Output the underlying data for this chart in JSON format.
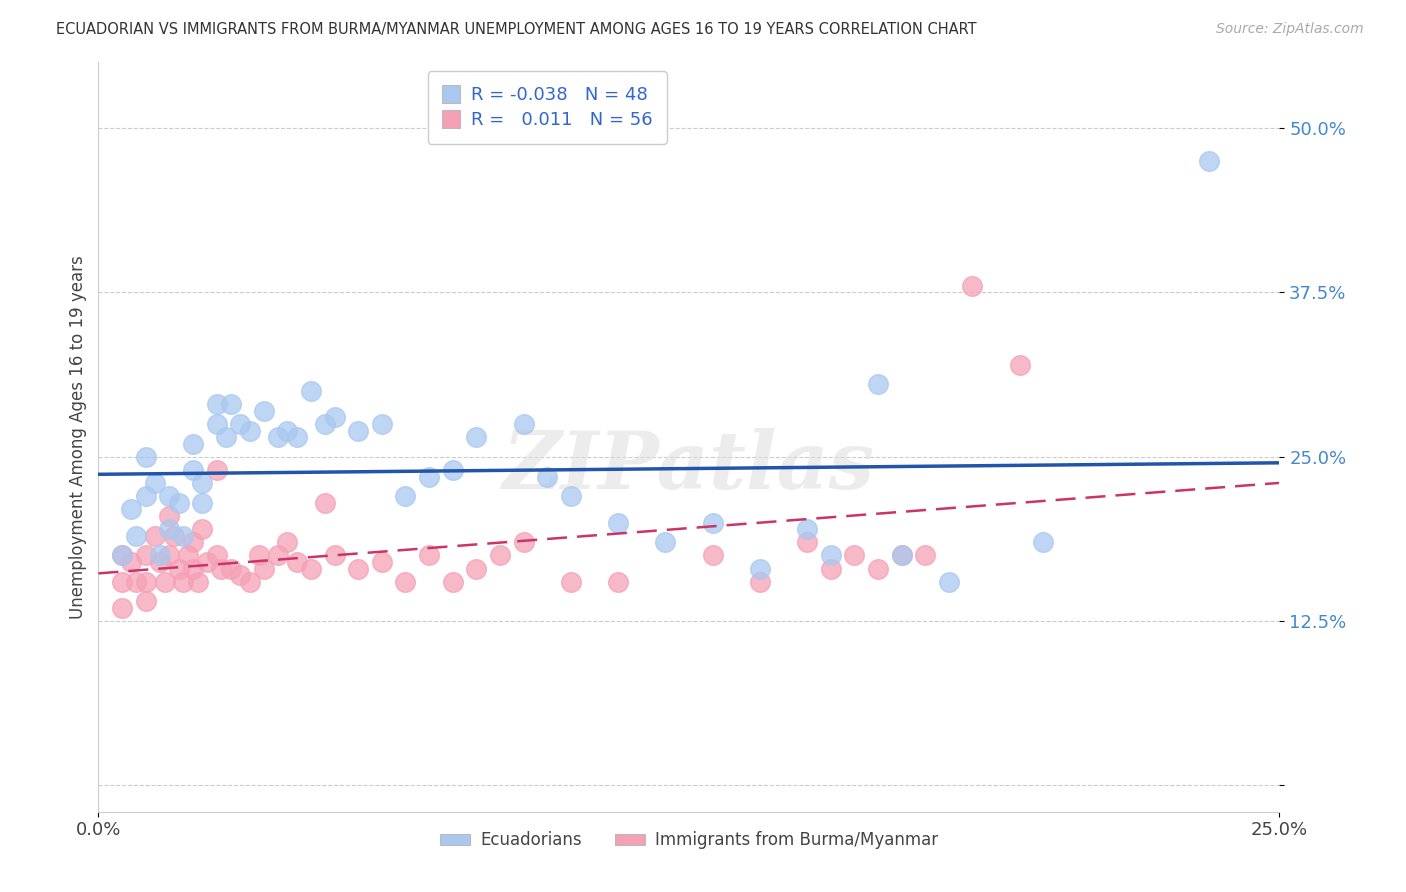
{
  "title": "ECUADORIAN VS IMMIGRANTS FROM BURMA/MYANMAR UNEMPLOYMENT AMONG AGES 16 TO 19 YEARS CORRELATION CHART",
  "source": "Source: ZipAtlas.com",
  "ylabel": "Unemployment Among Ages 16 to 19 years",
  "xlim": [
    0.0,
    0.25
  ],
  "ylim": [
    -0.02,
    0.55
  ],
  "yticks": [
    0.0,
    0.125,
    0.25,
    0.375,
    0.5
  ],
  "ytick_labels": [
    "",
    "12.5%",
    "25.0%",
    "37.5%",
    "50.0%"
  ],
  "xticks": [
    0.0,
    0.25
  ],
  "xtick_labels": [
    "0.0%",
    "25.0%"
  ],
  "legend_ecuadorian": "Ecuadorians",
  "legend_burma": "Immigrants from Burma/Myanmar",
  "R_ecu": -0.038,
  "N_ecu": 48,
  "R_burma": 0.011,
  "N_burma": 56,
  "blue_color": "#A8C8F0",
  "pink_color": "#F5A0B5",
  "blue_line_color": "#2255AA",
  "pink_line_color": "#CC3366",
  "watermark": "ZIPatlas",
  "ecu_x": [
    0.005,
    0.007,
    0.008,
    0.01,
    0.01,
    0.012,
    0.013,
    0.015,
    0.015,
    0.017,
    0.018,
    0.02,
    0.02,
    0.022,
    0.022,
    0.025,
    0.025,
    0.027,
    0.028,
    0.03,
    0.032,
    0.035,
    0.038,
    0.04,
    0.042,
    0.045,
    0.048,
    0.05,
    0.055,
    0.06,
    0.065,
    0.07,
    0.075,
    0.08,
    0.09,
    0.095,
    0.1,
    0.11,
    0.12,
    0.13,
    0.14,
    0.15,
    0.155,
    0.165,
    0.17,
    0.18,
    0.2,
    0.235
  ],
  "ecu_y": [
    0.175,
    0.21,
    0.19,
    0.22,
    0.25,
    0.23,
    0.175,
    0.22,
    0.195,
    0.215,
    0.19,
    0.24,
    0.26,
    0.23,
    0.215,
    0.275,
    0.29,
    0.265,
    0.29,
    0.275,
    0.27,
    0.285,
    0.265,
    0.27,
    0.265,
    0.3,
    0.275,
    0.28,
    0.27,
    0.275,
    0.22,
    0.235,
    0.24,
    0.265,
    0.275,
    0.235,
    0.22,
    0.2,
    0.185,
    0.2,
    0.165,
    0.195,
    0.175,
    0.305,
    0.175,
    0.155,
    0.185,
    0.475
  ],
  "burma_x": [
    0.005,
    0.005,
    0.005,
    0.007,
    0.008,
    0.01,
    0.01,
    0.01,
    0.012,
    0.013,
    0.014,
    0.015,
    0.015,
    0.016,
    0.017,
    0.018,
    0.019,
    0.02,
    0.02,
    0.021,
    0.022,
    0.023,
    0.025,
    0.025,
    0.026,
    0.028,
    0.03,
    0.032,
    0.034,
    0.035,
    0.038,
    0.04,
    0.042,
    0.045,
    0.048,
    0.05,
    0.055,
    0.06,
    0.065,
    0.07,
    0.075,
    0.08,
    0.085,
    0.09,
    0.1,
    0.11,
    0.13,
    0.14,
    0.15,
    0.155,
    0.16,
    0.165,
    0.17,
    0.175,
    0.185,
    0.195
  ],
  "burma_y": [
    0.175,
    0.155,
    0.135,
    0.17,
    0.155,
    0.175,
    0.155,
    0.14,
    0.19,
    0.17,
    0.155,
    0.205,
    0.175,
    0.19,
    0.165,
    0.155,
    0.175,
    0.185,
    0.165,
    0.155,
    0.195,
    0.17,
    0.24,
    0.175,
    0.165,
    0.165,
    0.16,
    0.155,
    0.175,
    0.165,
    0.175,
    0.185,
    0.17,
    0.165,
    0.215,
    0.175,
    0.165,
    0.17,
    0.155,
    0.175,
    0.155,
    0.165,
    0.175,
    0.185,
    0.155,
    0.155,
    0.175,
    0.155,
    0.185,
    0.165,
    0.175,
    0.165,
    0.175,
    0.175,
    0.38,
    0.32
  ]
}
